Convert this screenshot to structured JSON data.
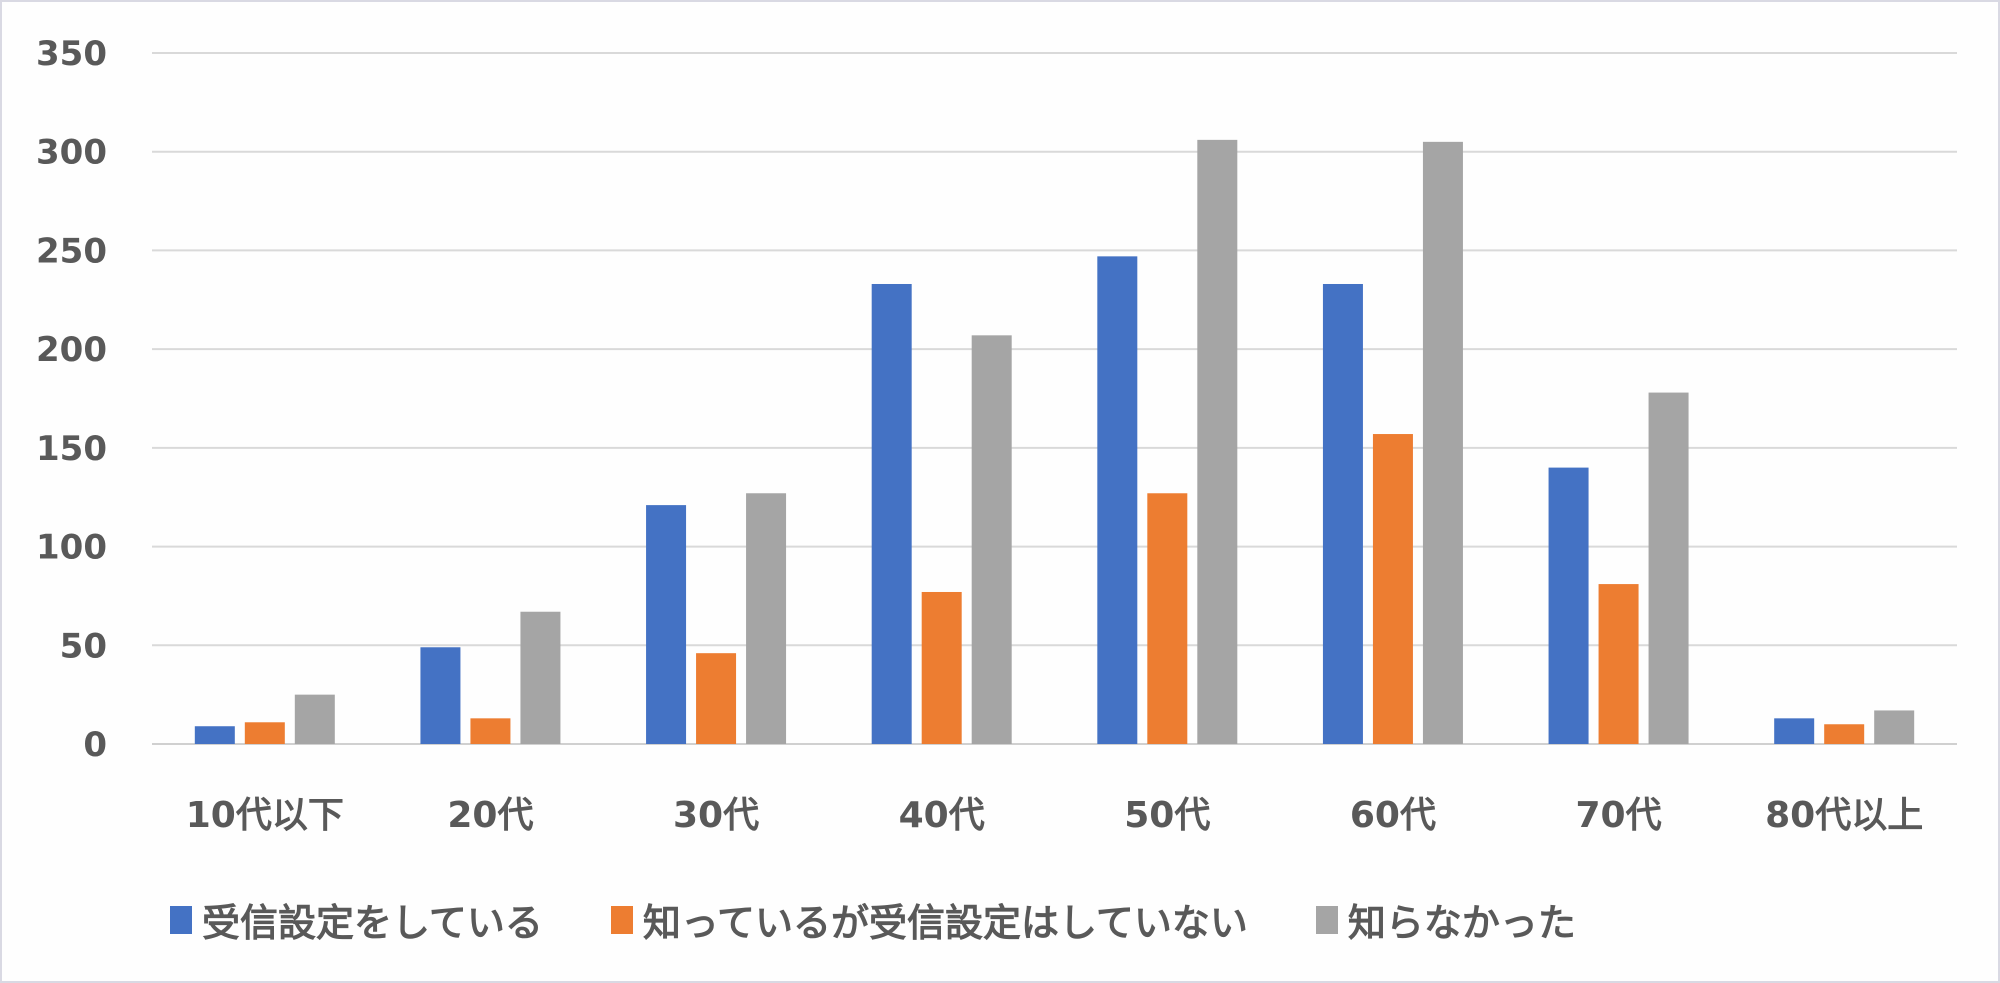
{
  "chart_data": {
    "type": "bar",
    "categories": [
      "10代以下",
      "20代",
      "30代",
      "40代",
      "50代",
      "60代",
      "70代",
      "80代以上"
    ],
    "series": [
      {
        "name": "受信設定をしている",
        "color": "#4472C4",
        "values": [
          9,
          49,
          121,
          233,
          247,
          233,
          140,
          13
        ]
      },
      {
        "name": "知っているが受信設定はしていない",
        "color": "#ED7D31",
        "values": [
          11,
          13,
          46,
          77,
          127,
          157,
          81,
          10
        ]
      },
      {
        "name": "知らなかった",
        "color": "#A5A5A5",
        "values": [
          25,
          67,
          127,
          207,
          306,
          305,
          178,
          17
        ]
      }
    ],
    "ylim": [
      0,
      350
    ],
    "yticks": [
      "0",
      "50",
      "100",
      "150",
      "200",
      "250",
      "300",
      "350"
    ],
    "grid": true,
    "legend_position": "bottom"
  }
}
